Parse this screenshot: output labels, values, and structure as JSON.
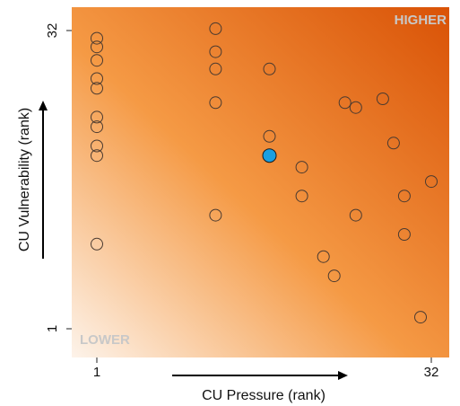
{
  "chart_data": {
    "type": "scatter",
    "title": "",
    "xlabel": "CU Pressure (rank)",
    "ylabel": "CU Vulnerability (rank)",
    "xlim": [
      1,
      32
    ],
    "ylim": [
      1,
      32
    ],
    "x_ticks": [
      "1",
      "32"
    ],
    "y_ticks": [
      "1",
      "32"
    ],
    "corner_labels": {
      "top_right": "HIGHER",
      "bottom_left": "LOWER"
    },
    "background": "orange gradient increasing toward top-right",
    "colors": {
      "gradient_low": "#fdf3ea",
      "gradient_mid": "#f59a45",
      "gradient_high": "#d95206",
      "point_fill": "none",
      "point_stroke": "#4a3a30",
      "highlight_fill": "#1a9fe0",
      "corner_label": "#c8c8c8"
    },
    "series": [
      {
        "points": [
          {
            "x": 1,
            "y": 31.2
          },
          {
            "x": 1,
            "y": 30.3
          },
          {
            "x": 1,
            "y": 28.9
          },
          {
            "x": 1,
            "y": 27
          },
          {
            "x": 1,
            "y": 26
          },
          {
            "x": 1,
            "y": 23
          },
          {
            "x": 1,
            "y": 22
          },
          {
            "x": 1,
            "y": 20
          },
          {
            "x": 1,
            "y": 19
          },
          {
            "x": 1,
            "y": 9.8
          },
          {
            "x": 12,
            "y": 32.2
          },
          {
            "x": 12,
            "y": 29.8
          },
          {
            "x": 12,
            "y": 28
          },
          {
            "x": 12,
            "y": 24.5
          },
          {
            "x": 12,
            "y": 12.8
          },
          {
            "x": 17,
            "y": 28
          },
          {
            "x": 17,
            "y": 21
          },
          {
            "x": 20,
            "y": 17.8
          },
          {
            "x": 20,
            "y": 14.8
          },
          {
            "x": 22,
            "y": 8.5
          },
          {
            "x": 23,
            "y": 6.5
          },
          {
            "x": 24,
            "y": 24.5
          },
          {
            "x": 25,
            "y": 24
          },
          {
            "x": 25,
            "y": 12.8
          },
          {
            "x": 27.5,
            "y": 24.9
          },
          {
            "x": 28.5,
            "y": 20.3
          },
          {
            "x": 29.5,
            "y": 14.8
          },
          {
            "x": 29.5,
            "y": 10.8
          },
          {
            "x": 31,
            "y": 2.2
          },
          {
            "x": 32,
            "y": 16.3
          }
        ]
      },
      {
        "highlight": true,
        "points": [
          {
            "x": 17,
            "y": 19
          }
        ]
      }
    ]
  }
}
